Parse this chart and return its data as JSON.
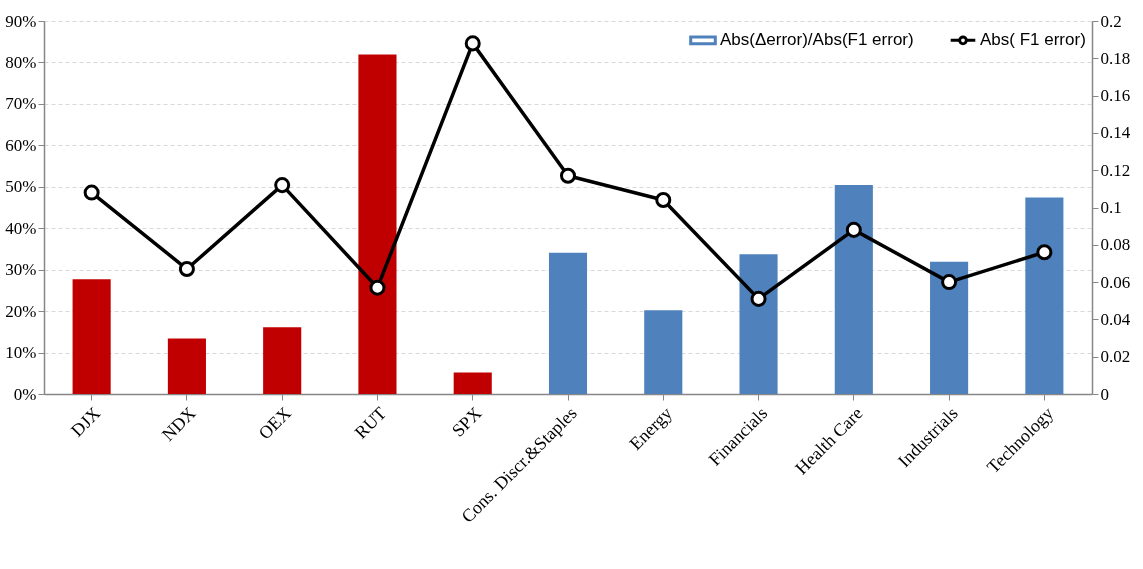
{
  "chart_data": {
    "type": "bar",
    "categories": [
      "DJX",
      "NDX",
      "OEX",
      "RUT",
      "SPX",
      "Cons. Discr.&Staples",
      "Energy",
      "Financials",
      "Health Care",
      "Industrials",
      "Technology"
    ],
    "series": [
      {
        "name": "Abs(Δerror)/Abs(F1 error)",
        "color": "#4f81bd",
        "colors": [
          "#c00000",
          "#c00000",
          "#c00000",
          "#c00000",
          "#c00000",
          "#4f81bd",
          "#4f81bd",
          "#4f81bd",
          "#4f81bd",
          "#4f81bd",
          "#4f81bd"
        ],
        "values": [
          27.7,
          13.4,
          16.1,
          81.9,
          5.2,
          34.1,
          20.2,
          33.7,
          50.4,
          31.9,
          47.4
        ]
      },
      {
        "name": "Abs( F1 error)",
        "type": "line",
        "axis": "y2",
        "color": "#000000",
        "marker": "circle",
        "values": [
          0.108,
          0.067,
          0.112,
          0.057,
          0.188,
          0.117,
          0.104,
          0.051,
          0.088,
          0.06,
          0.076
        ]
      }
    ],
    "ylim": [
      0,
      90
    ],
    "yticks": [
      {
        "value": 0,
        "label": "0%"
      },
      {
        "value": 10,
        "label": "10%"
      },
      {
        "value": 20,
        "label": "20%"
      },
      {
        "value": 30,
        "label": "30%"
      },
      {
        "value": 40,
        "label": "40%"
      },
      {
        "value": 50,
        "label": "50%"
      },
      {
        "value": 60,
        "label": "60%"
      },
      {
        "value": 70,
        "label": "70%"
      },
      {
        "value": 80,
        "label": "80%"
      },
      {
        "value": 90,
        "label": "90%"
      }
    ],
    "y2lim": [
      0,
      0.2
    ],
    "y2ticks": [
      0,
      0.02,
      0.04,
      0.06,
      0.08,
      0.1,
      0.12,
      0.14,
      0.16,
      0.18,
      0.2
    ],
    "grid": "y",
    "legend": "top right"
  }
}
